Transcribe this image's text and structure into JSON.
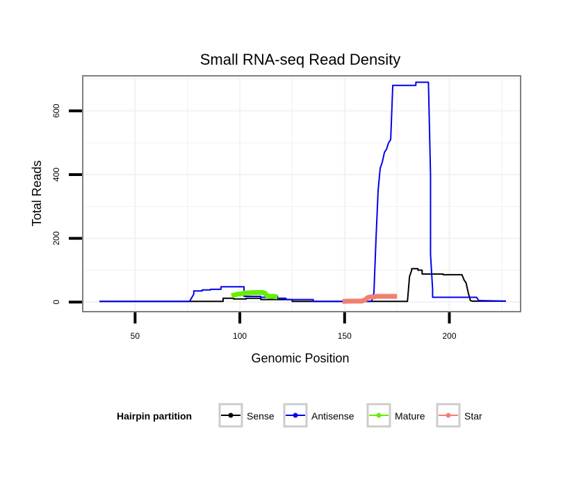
{
  "chart_data": {
    "type": "line",
    "title": "Small RNA-seq Read Density",
    "xlabel": "Genomic Position",
    "ylabel": "Total Reads",
    "xlim": [
      25,
      234
    ],
    "ylim": [
      -30,
      710
    ],
    "x_ticks": [
      50,
      100,
      150,
      200
    ],
    "x_tick_labels": [
      "50",
      "100",
      "150",
      "200"
    ],
    "y_ticks": [
      0,
      200,
      400,
      600
    ],
    "y_tick_labels": [
      "0",
      "200",
      "400",
      "600"
    ],
    "grid": true,
    "legend": {
      "title": "Hairpin partition",
      "position": "bottom",
      "entries": [
        "Sense",
        "Antisense",
        "Mature",
        "Star"
      ]
    },
    "series": [
      {
        "name": "Sense",
        "color": "#000000",
        "x": [
          33,
          92,
          92,
          97,
          97,
          103,
          103,
          110,
          110,
          125,
          125,
          180,
          181,
          182,
          182,
          185,
          185,
          187,
          187,
          197,
          197,
          206,
          207,
          208,
          209,
          210,
          211,
          213,
          227
        ],
        "y": [
          2,
          2,
          12,
          12,
          10,
          10,
          12,
          12,
          8,
          8,
          2,
          2,
          80,
          100,
          105,
          105,
          100,
          100,
          88,
          88,
          86,
          86,
          70,
          60,
          30,
          5,
          3,
          3,
          3
        ]
      },
      {
        "name": "Antisense",
        "color": "#0000ee",
        "x": [
          33,
          76,
          78,
          78,
          82,
          82,
          86,
          86,
          91,
          91,
          102,
          102,
          110,
          110,
          115,
          115,
          118,
          118,
          122,
          122,
          135,
          135,
          162,
          163,
          164,
          165,
          166,
          167,
          168,
          169,
          170,
          171,
          172,
          173,
          179,
          179,
          184,
          184,
          190,
          191,
          191,
          192,
          192,
          213,
          214,
          227
        ],
        "y": [
          2,
          2,
          25,
          35,
          35,
          38,
          38,
          40,
          40,
          48,
          48,
          18,
          18,
          15,
          15,
          18,
          18,
          12,
          12,
          8,
          8,
          2,
          2,
          5,
          30,
          200,
          350,
          420,
          440,
          470,
          480,
          500,
          510,
          680,
          680,
          680,
          680,
          690,
          690,
          400,
          150,
          40,
          15,
          15,
          5,
          3
        ]
      },
      {
        "name": "Mature",
        "color": "#66ee00",
        "x": [
          96,
          97,
          98,
          99,
          100,
          101,
          102,
          103,
          104,
          105,
          106,
          107,
          108,
          109,
          110,
          111,
          112,
          113,
          114,
          115,
          116,
          117,
          118
        ],
        "y": [
          20,
          22,
          23,
          25,
          25,
          26,
          28,
          28,
          29,
          29,
          30,
          30,
          30,
          30,
          30,
          30,
          28,
          20,
          18,
          18,
          18,
          17,
          16
        ]
      },
      {
        "name": "Star",
        "color": "#f08070",
        "x": [
          149,
          150,
          151,
          152,
          153,
          154,
          155,
          156,
          157,
          158,
          159,
          160,
          161,
          162,
          163,
          164,
          165,
          166,
          167,
          168,
          169,
          170,
          171,
          172,
          173,
          174,
          175
        ],
        "y": [
          2,
          2,
          3,
          3,
          3,
          3,
          3,
          3,
          3,
          3,
          5,
          8,
          14,
          16,
          16,
          16,
          18,
          18,
          18,
          18,
          18,
          18,
          18,
          18,
          18,
          18,
          18
        ]
      }
    ]
  }
}
